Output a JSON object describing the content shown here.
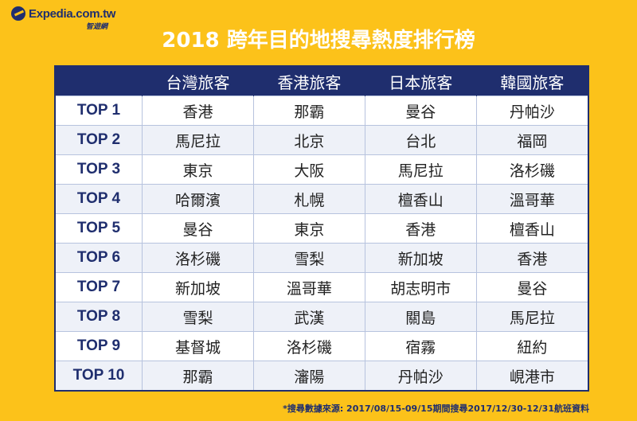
{
  "logo": {
    "brand": "Expedia.com.tw",
    "sub": "智遊網"
  },
  "title": "2018 跨年目的地搜尋熱度排行榜",
  "table": {
    "headers": [
      "",
      "台灣旅客",
      "香港旅客",
      "日本旅客",
      "韓國旅客"
    ],
    "rows": [
      {
        "rank": "TOP 1",
        "cells": [
          "香港",
          "那霸",
          "曼谷",
          "丹帕沙"
        ]
      },
      {
        "rank": "TOP 2",
        "cells": [
          "馬尼拉",
          "北京",
          "台北",
          "福岡"
        ]
      },
      {
        "rank": "TOP 3",
        "cells": [
          "東京",
          "大阪",
          "馬尼拉",
          "洛杉磯"
        ]
      },
      {
        "rank": "TOP 4",
        "cells": [
          "哈爾濱",
          "札幌",
          "檀香山",
          "溫哥華"
        ]
      },
      {
        "rank": "TOP 5",
        "cells": [
          "曼谷",
          "東京",
          "香港",
          "檀香山"
        ]
      },
      {
        "rank": "TOP 6",
        "cells": [
          "洛杉磯",
          "雪梨",
          "新加坡",
          "香港"
        ]
      },
      {
        "rank": "TOP 7",
        "cells": [
          "新加坡",
          "溫哥華",
          "胡志明市",
          "曼谷"
        ]
      },
      {
        "rank": "TOP 8",
        "cells": [
          "雪梨",
          "武漢",
          "關島",
          "馬尼拉"
        ]
      },
      {
        "rank": "TOP 9",
        "cells": [
          "基督城",
          "洛杉磯",
          "宿霧",
          "紐約"
        ]
      },
      {
        "rank": "TOP 10",
        "cells": [
          "那霸",
          "瀋陽",
          "丹帕沙",
          "峴港市"
        ]
      }
    ]
  },
  "footnote": "*搜尋數據來源: 2017/08/15-09/15期間搜尋2017/12/30-12/31航班資料",
  "colors": {
    "background": "#fcc21a",
    "header": "#1f2e6e",
    "title": "#ffffff"
  }
}
